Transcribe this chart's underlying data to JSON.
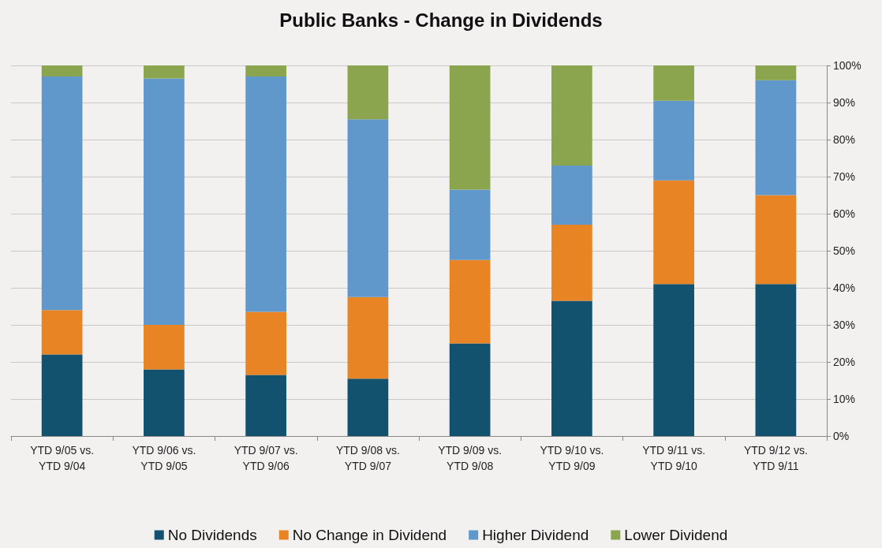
{
  "chart_data": {
    "type": "bar",
    "title": "Public Banks - Change in Dividends",
    "stacked": true,
    "grid": "y",
    "legend": "bottom",
    "categories": [
      "YTD 9/05 vs.\nYTD 9/04",
      "YTD 9/06 vs.\nYTD 9/05",
      "YTD 9/07 vs.\nYTD 9/06",
      "YTD 9/08 vs.\nYTD 9/07",
      "YTD 9/09 vs.\nYTD 9/08",
      "YTD 9/10 vs.\nYTD 9/09",
      "YTD 9/11 vs.\nYTD 9/10",
      "YTD 9/12 vs.\nYTD 9/11"
    ],
    "ylim": [
      0,
      100
    ],
    "yticks": [
      {
        "value": 0,
        "label": "0%"
      },
      {
        "value": 10,
        "label": "10%"
      },
      {
        "value": 20,
        "label": "20%"
      },
      {
        "value": 30,
        "label": "30%"
      },
      {
        "value": 40,
        "label": "40%"
      },
      {
        "value": 50,
        "label": "50%"
      },
      {
        "value": 60,
        "label": "60%"
      },
      {
        "value": 70,
        "label": "70%"
      },
      {
        "value": 80,
        "label": "80%"
      },
      {
        "value": 90,
        "label": "90%"
      },
      {
        "value": 100,
        "label": "100%"
      }
    ],
    "series": [
      {
        "name": "No Dividends",
        "color": "#12526e",
        "values": [
          22,
          18,
          16.5,
          15.5,
          25,
          36.5,
          41,
          41
        ]
      },
      {
        "name": "No Change in Dividend",
        "color": "#e98424",
        "values": [
          12,
          12,
          17,
          22,
          22.5,
          20.5,
          28,
          24
        ]
      },
      {
        "name": "Higher Dividend",
        "color": "#6198cc",
        "values": [
          63,
          66.5,
          63.5,
          48,
          19,
          16,
          21.5,
          31
        ]
      },
      {
        "name": "Lower Dividend",
        "color": "#8ba54e",
        "values": [
          3,
          3.5,
          3,
          14.5,
          33.5,
          27,
          9.5,
          4
        ]
      }
    ]
  }
}
